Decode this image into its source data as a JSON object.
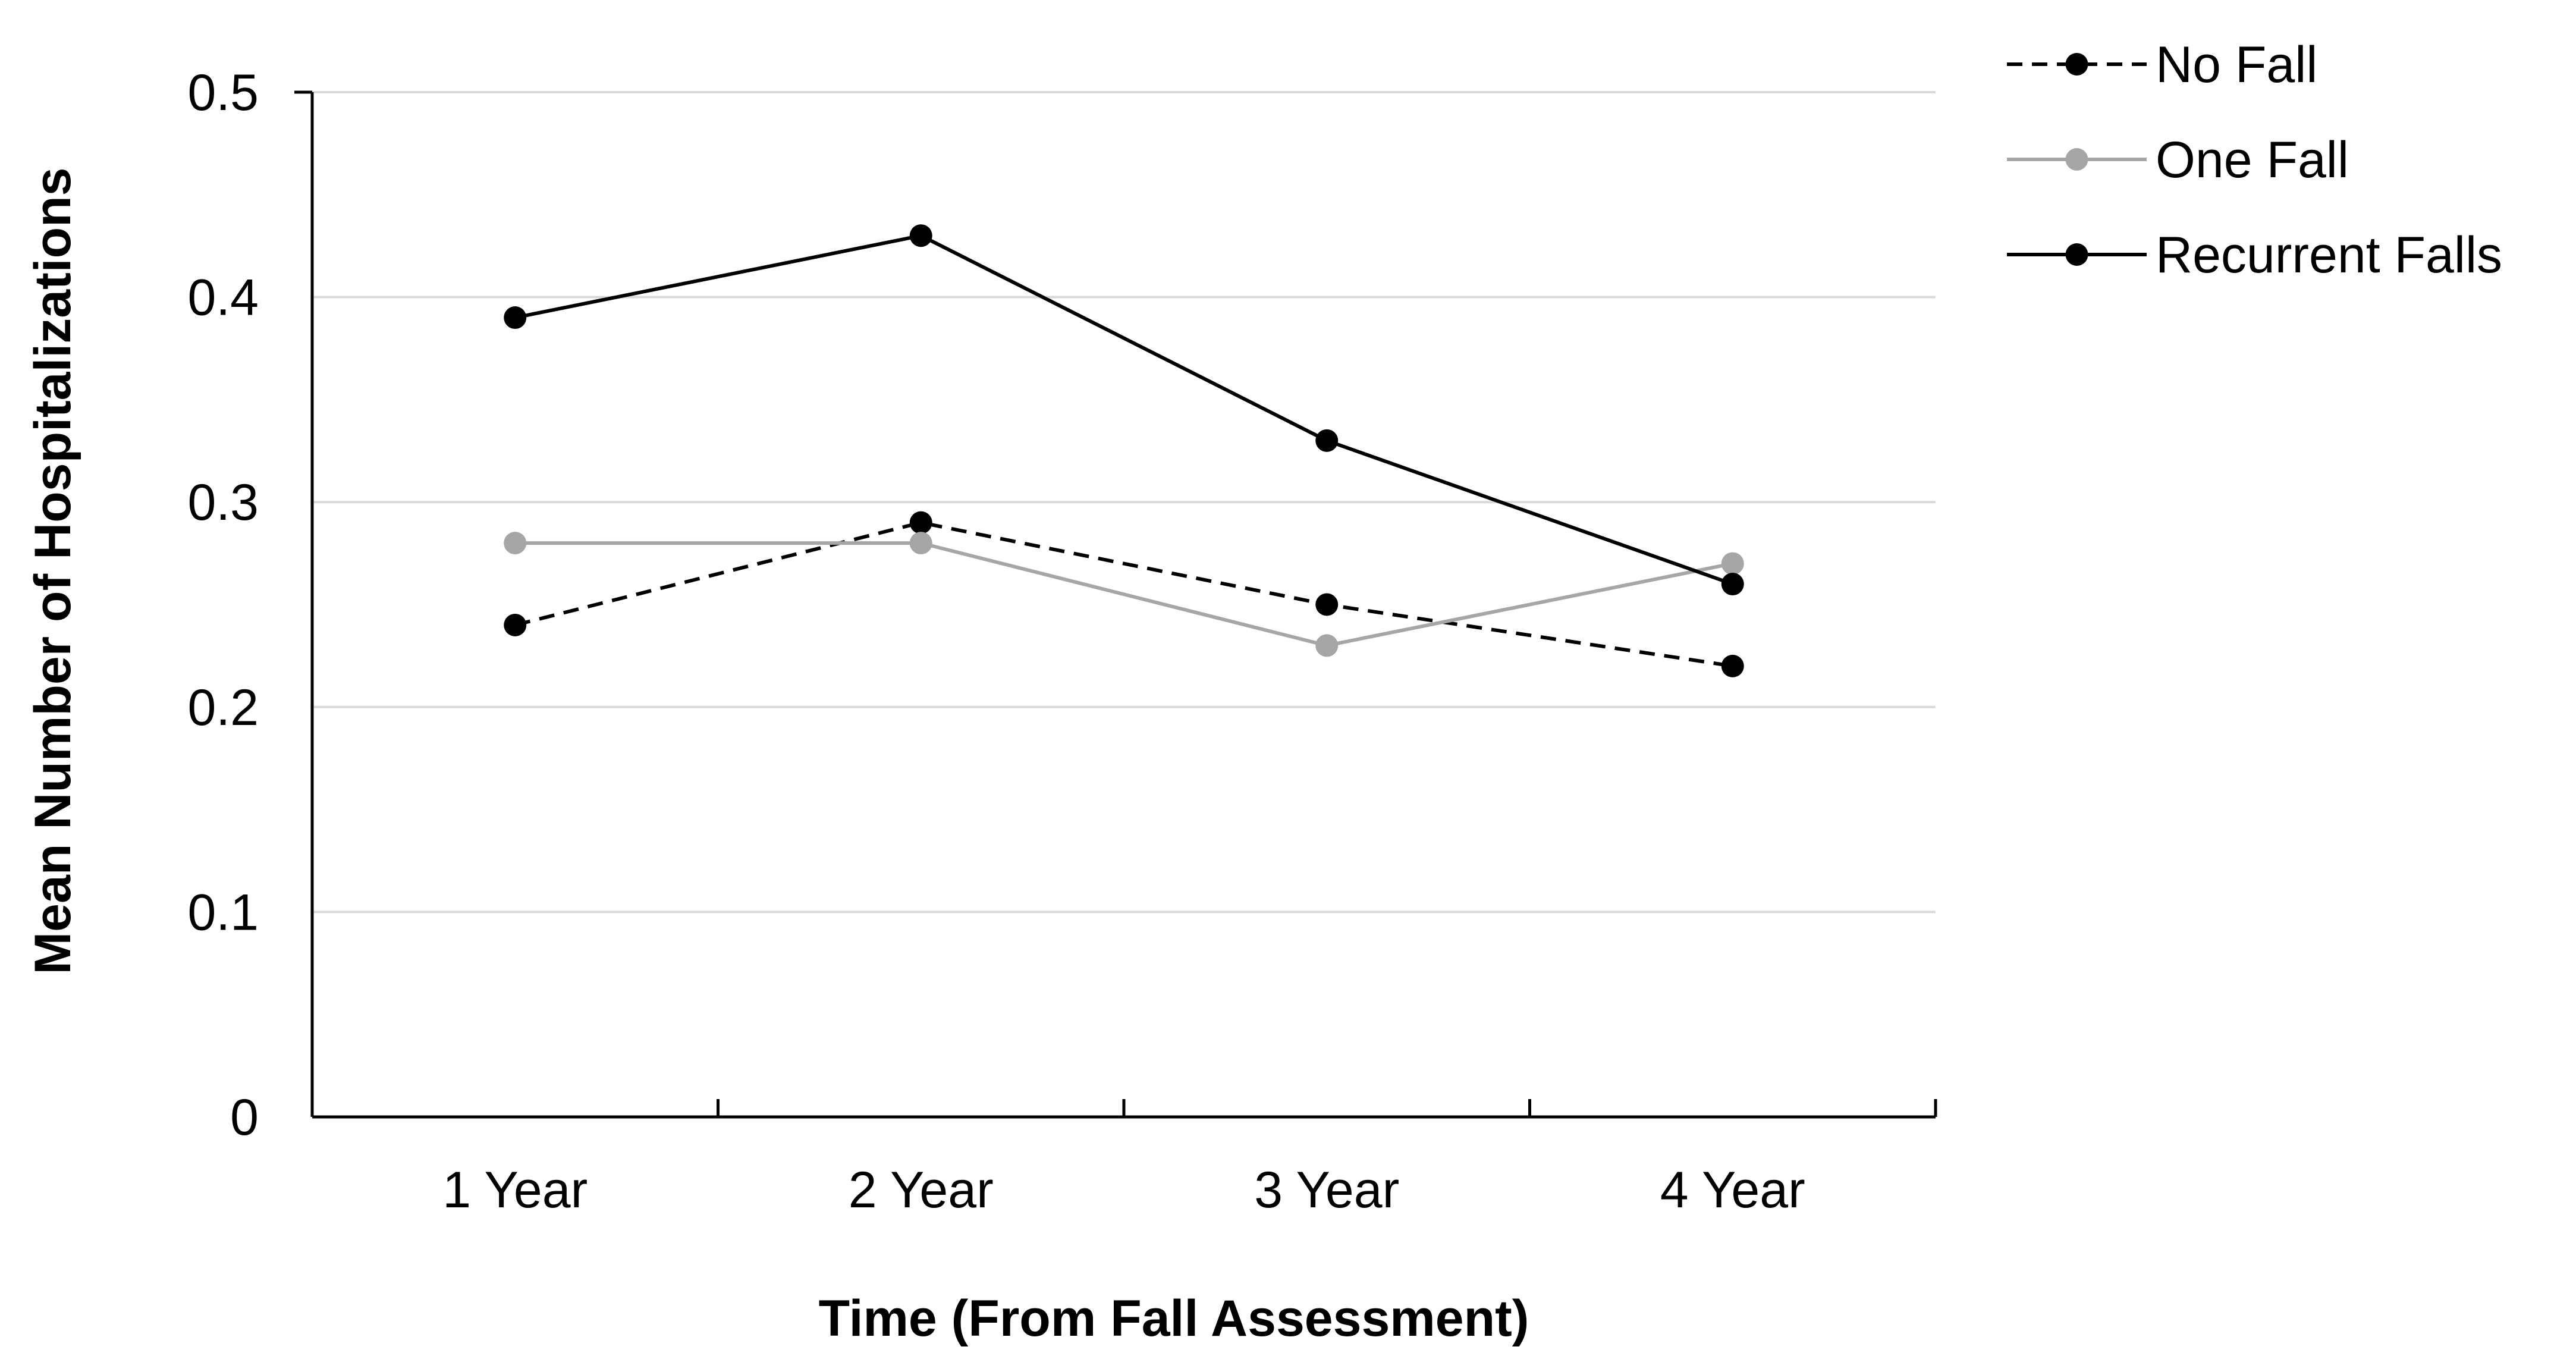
{
  "chart_data": {
    "type": "line",
    "title": "",
    "xlabel": "Time (From Fall Assessment)",
    "ylabel": "Mean Number of Hospitalizations",
    "categories": [
      "1 Year",
      "2 Year",
      "3 Year",
      "4 Year"
    ],
    "yticks": [
      "0",
      "0.1",
      "0.2",
      "0.3",
      "0.4",
      "0.5"
    ],
    "ylim": [
      0,
      0.5
    ],
    "grid": "horizontal",
    "legend_position": "top-right",
    "series": [
      {
        "name": "No Fall",
        "values": [
          0.24,
          0.29,
          0.25,
          0.22
        ],
        "color": "#000000",
        "line_style": "dashed"
      },
      {
        "name": "One Fall",
        "values": [
          0.28,
          0.28,
          0.23,
          0.27
        ],
        "color": "#a6a6a6",
        "line_style": "solid"
      },
      {
        "name": "Recurrent Falls",
        "values": [
          0.39,
          0.43,
          0.33,
          0.26
        ],
        "color": "#000000",
        "line_style": "solid"
      }
    ]
  }
}
